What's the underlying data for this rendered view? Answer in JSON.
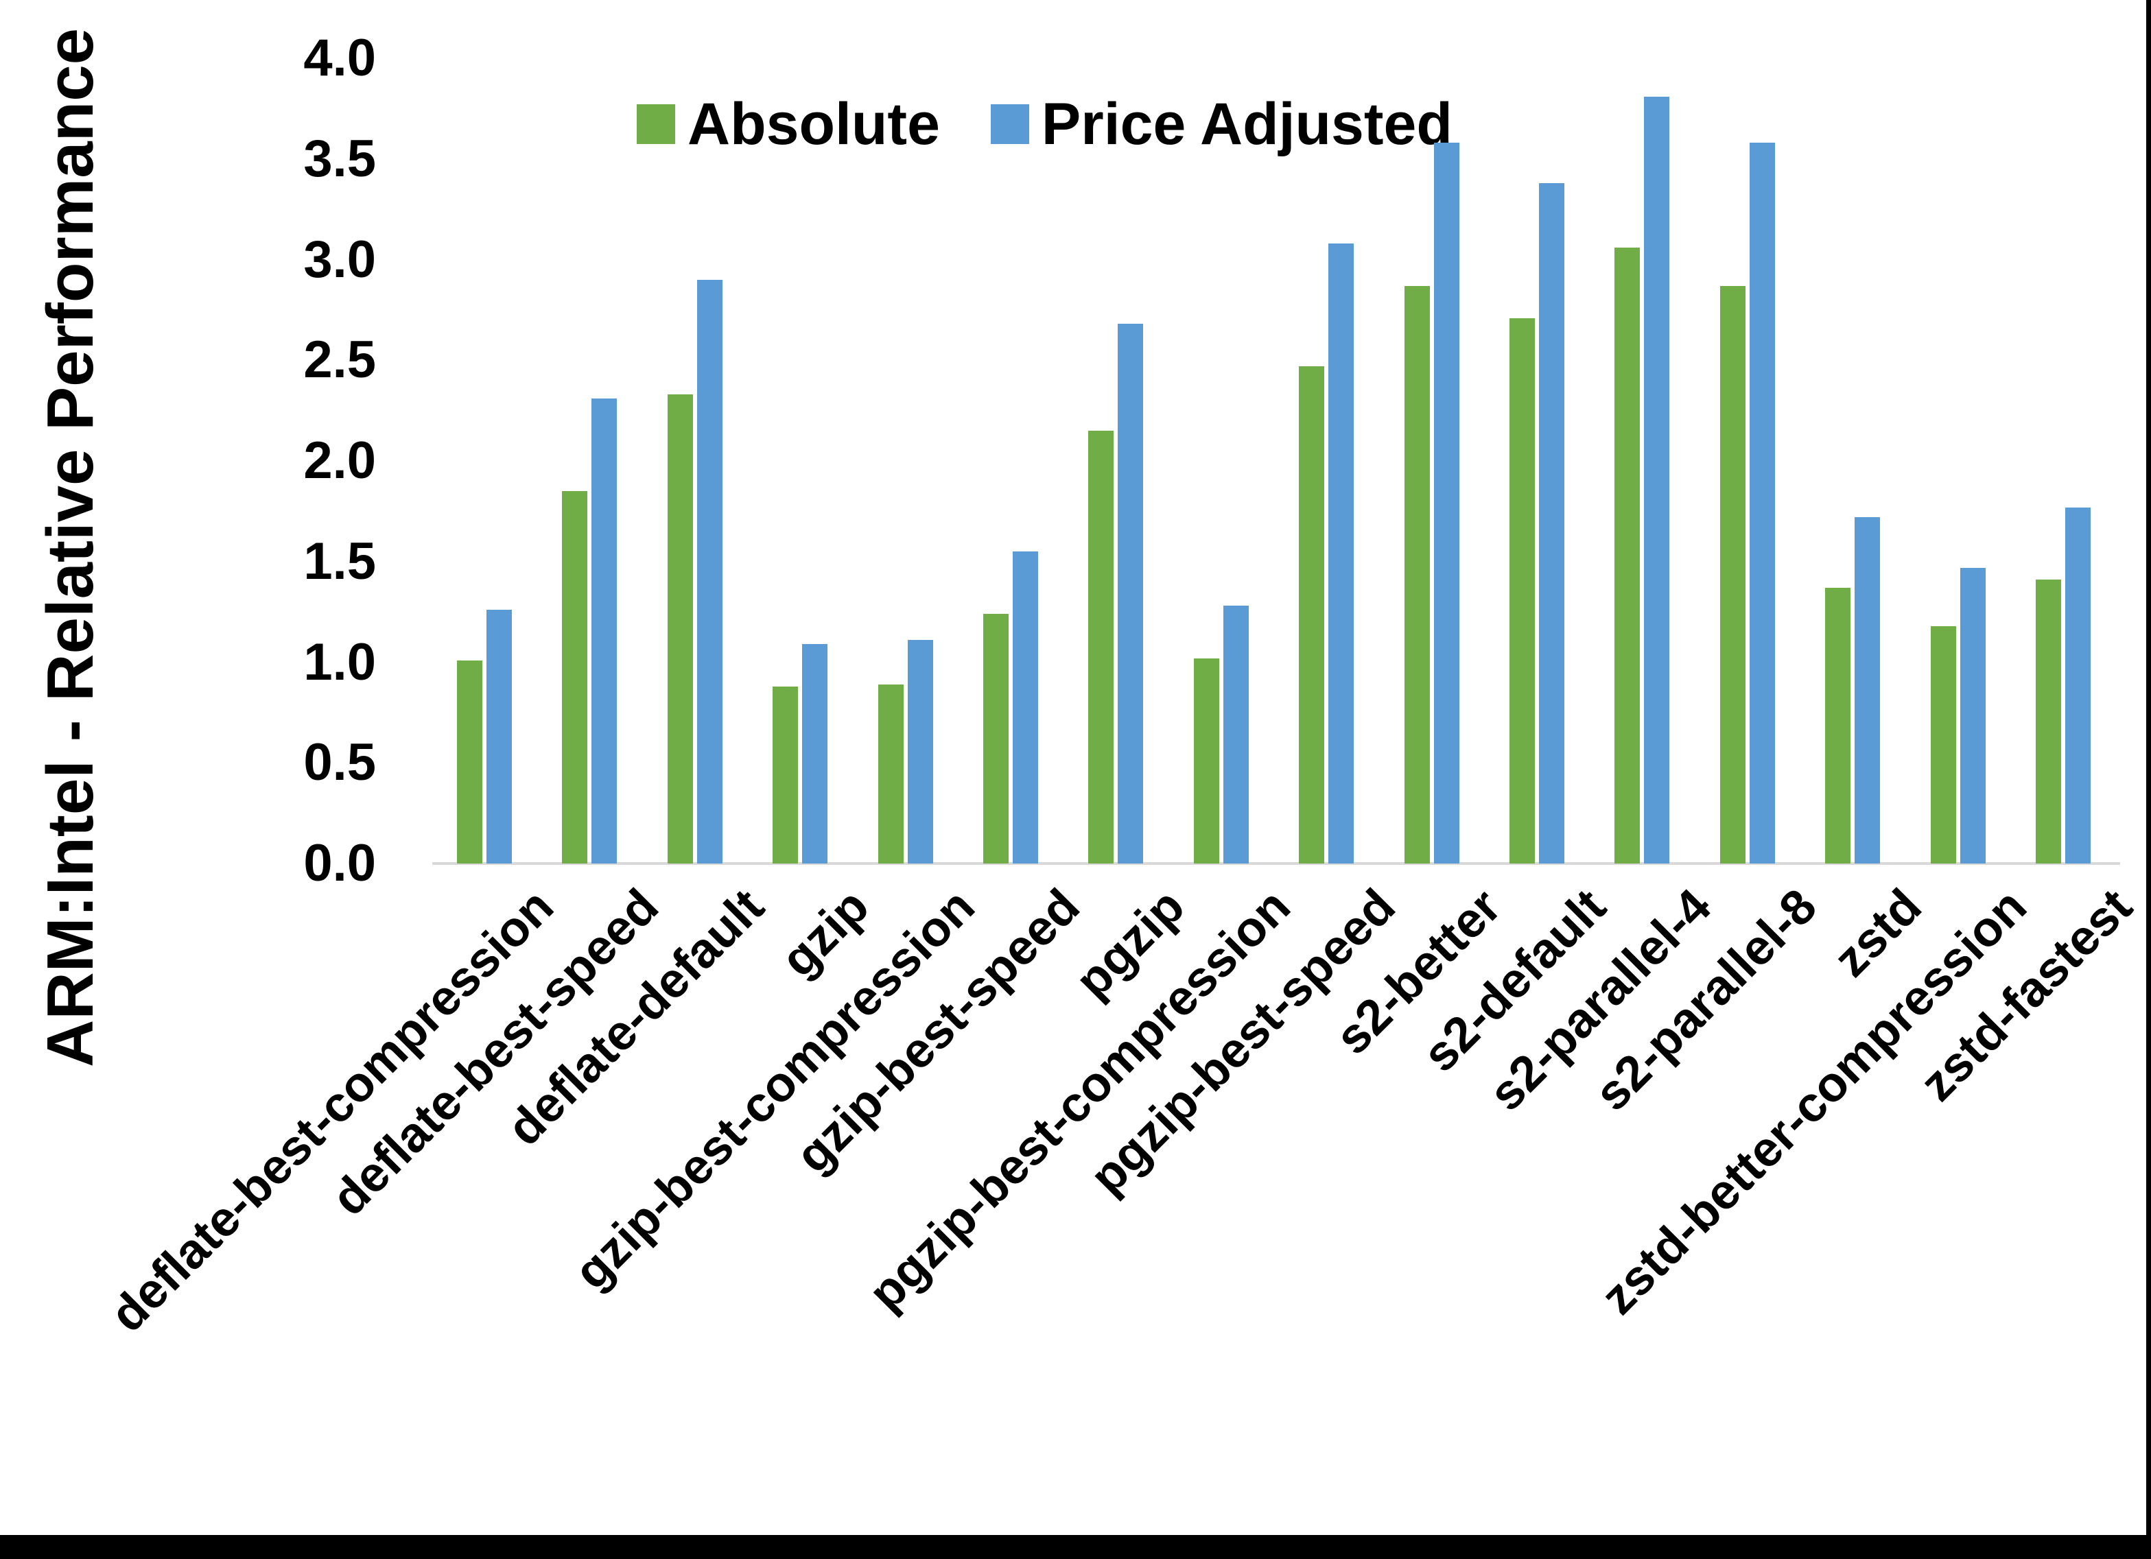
{
  "page": {
    "background": "#ffffff",
    "border_color": "#000000"
  },
  "chart_data": {
    "type": "bar",
    "title": "",
    "xlabel": "",
    "ylabel": "ARM:Intel - Relative Performance",
    "ylim": [
      0.0,
      4.0
    ],
    "ytick_step": 0.5,
    "ytick_labels": [
      "0.0",
      "0.5",
      "1.0",
      "1.5",
      "2.0",
      "2.5",
      "3.0",
      "3.5",
      "4.0"
    ],
    "grid": false,
    "legend_position": "top-center",
    "axis_line_color": "#d9d9d9",
    "categories": [
      "deflate-best-compression",
      "deflate-best-speed",
      "deflate-default",
      "gzip",
      "gzip-best-compression",
      "gzip-best-speed",
      "pgzip",
      "pgzip-best-compression",
      "pgzip-best-speed",
      "s2-better",
      "s2-default",
      "s2-parallel-4",
      "s2-parallel-8",
      "zstd",
      "zstd-better-compression",
      "zstd-fastest"
    ],
    "series": [
      {
        "name": "Absolute",
        "color": "#70AD47",
        "values": [
          1.01,
          1.85,
          2.33,
          0.88,
          0.89,
          1.24,
          2.15,
          1.02,
          2.47,
          2.87,
          2.71,
          3.06,
          2.87,
          1.37,
          1.18,
          1.41
        ]
      },
      {
        "name": "Price Adjusted",
        "color": "#5B9BD5",
        "values": [
          1.26,
          2.31,
          2.9,
          1.09,
          1.11,
          1.55,
          2.68,
          1.28,
          3.08,
          3.58,
          3.38,
          3.81,
          3.58,
          1.72,
          1.47,
          1.77
        ]
      }
    ]
  }
}
